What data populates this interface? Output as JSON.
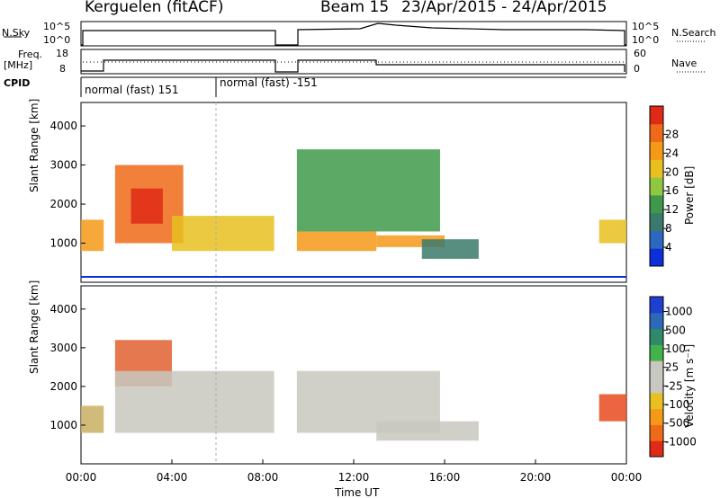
{
  "header": {
    "station": "Kerguelen (fitACF)",
    "beam": "Beam 15",
    "date_range": "23/Apr/2015 - 24/Apr/2015"
  },
  "strip_labels": {
    "nsky": "N.Sky",
    "nsearch": "N.Search",
    "freq": "Freq.",
    "freq_unit": "[MHz]",
    "nave": "Nave",
    "cpid": "CPID",
    "nsky_ticks": [
      "10^5",
      "10^0"
    ],
    "freq_ticks": [
      "18",
      "8"
    ],
    "nave_ticks": [
      "60",
      "0"
    ],
    "cpid_blocks": [
      "normal (fast) 151",
      "normal (fast) -151"
    ]
  },
  "chart_data": [
    {
      "type": "heatmap",
      "name": "power",
      "ylabel": "Slant Range [km]",
      "yticks": [
        "1000",
        "2000",
        "3000",
        "4000"
      ],
      "ylim": [
        0,
        4600
      ],
      "xlim": [
        0,
        24
      ],
      "colorbar": {
        "label": "Power [dB]",
        "ticks": [
          "4",
          "8",
          "12",
          "16",
          "20",
          "24",
          "28"
        ],
        "colors": [
          "#0b2fd8",
          "#2c68c0",
          "#3b7a6a",
          "#3e9a4a",
          "#8fc840",
          "#e8c020",
          "#f59a18",
          "#ee6a18",
          "#e02a18"
        ]
      },
      "regions": [
        {
          "x0": 0.0,
          "x1": 1.0,
          "y0": 800,
          "y1": 1600,
          "level": 6
        },
        {
          "x0": 1.5,
          "x1": 4.5,
          "y0": 1000,
          "y1": 3000,
          "level": 7
        },
        {
          "x0": 2.2,
          "x1": 3.6,
          "y0": 1500,
          "y1": 2400,
          "level": 8
        },
        {
          "x0": 4.0,
          "x1": 8.5,
          "y0": 800,
          "y1": 1700,
          "level": 5
        },
        {
          "x0": 9.5,
          "x1": 13.0,
          "y0": 800,
          "y1": 1300,
          "level": 6
        },
        {
          "x0": 9.5,
          "x1": 15.8,
          "y0": 1300,
          "y1": 3400,
          "level": 3
        },
        {
          "x0": 13.0,
          "x1": 16.0,
          "y0": 900,
          "y1": 1200,
          "level": 6
        },
        {
          "x0": 15.0,
          "x1": 17.5,
          "y0": 600,
          "y1": 1100,
          "level": 2
        },
        {
          "x0": 22.8,
          "x1": 24.0,
          "y0": 1000,
          "y1": 1600,
          "level": 5
        }
      ]
    },
    {
      "type": "heatmap",
      "name": "velocity",
      "xlabel": "Time UT",
      "ylabel": "Slant Range [km]",
      "xticks": [
        "00:00",
        "04:00",
        "08:00",
        "12:00",
        "16:00",
        "20:00",
        "00:00"
      ],
      "yticks": [
        "1000",
        "2000",
        "3000",
        "4000"
      ],
      "ylim": [
        0,
        4600
      ],
      "xlim": [
        0,
        24
      ],
      "colorbar": {
        "label": "Velocity [m s⁻¹]",
        "ticks": [
          "1000",
          "500",
          "100",
          "25",
          "-25",
          "-100",
          "-500",
          "-1000"
        ],
        "colors": [
          "#1f3fd0",
          "#2c6ab8",
          "#2f8a6a",
          "#44b24c",
          "#c8c8c0",
          "#c8c8c0",
          "#e8c020",
          "#f59a18",
          "#ee6a18",
          "#e02a18"
        ]
      },
      "regions": [
        {
          "x0": 0.0,
          "x1": 1.0,
          "y0": 800,
          "y1": 1500,
          "color": "#c8b060"
        },
        {
          "x0": 1.5,
          "x1": 4.0,
          "y0": 2000,
          "y1": 3200,
          "color": "#e06030"
        },
        {
          "x0": 1.5,
          "x1": 8.5,
          "y0": 800,
          "y1": 2400,
          "color": "#c8c8c0"
        },
        {
          "x0": 9.5,
          "x1": 15.8,
          "y0": 800,
          "y1": 2400,
          "color": "#c8c8c0"
        },
        {
          "x0": 13.0,
          "x1": 17.5,
          "y0": 600,
          "y1": 1100,
          "color": "#c8c8c0"
        },
        {
          "x0": 22.8,
          "x1": 24.0,
          "y0": 1100,
          "y1": 1800,
          "color": "#e84a20"
        }
      ]
    }
  ]
}
